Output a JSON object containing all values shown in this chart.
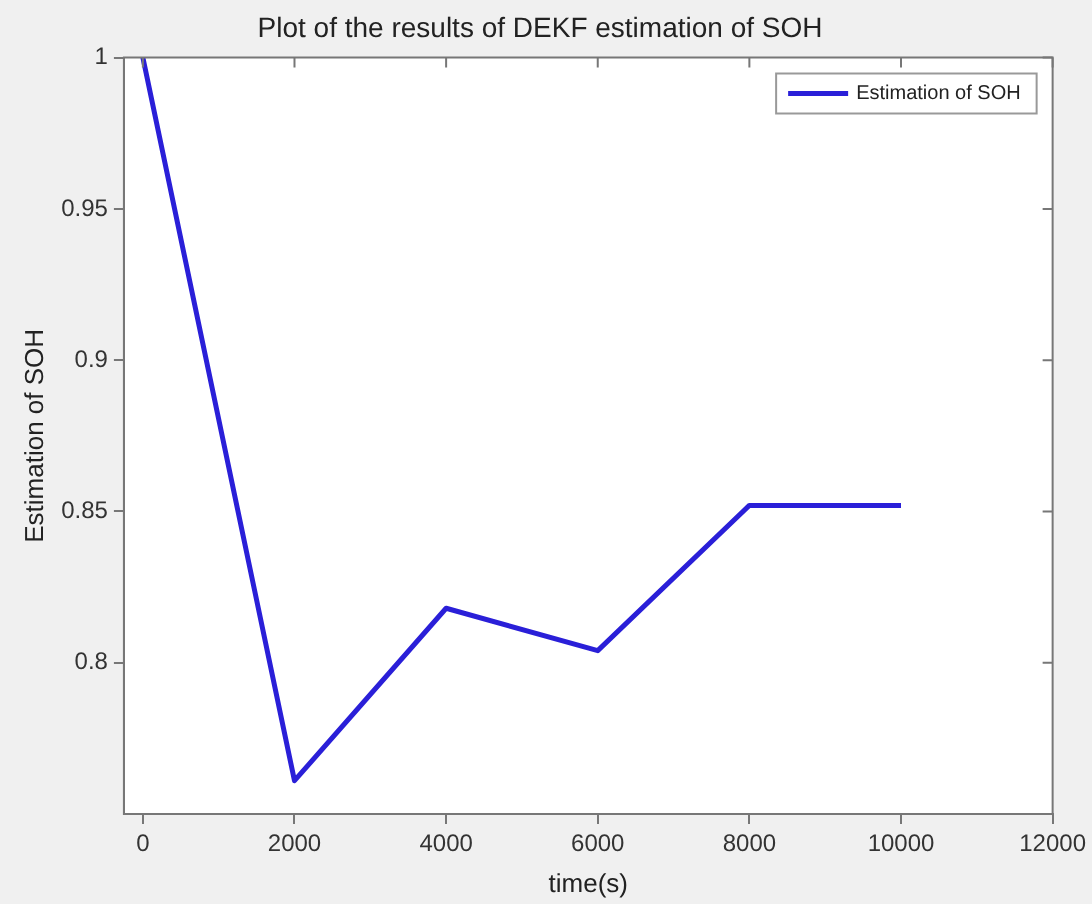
{
  "chart_data": {
    "type": "line",
    "title": "Plot of the results of DEKF estimation of SOH",
    "xlabel": "time(s)",
    "ylabel": "Estimation of SOH",
    "x": [
      0,
      2000,
      4000,
      6000,
      8000,
      10000
    ],
    "series": [
      {
        "name": "Estimation of SOH",
        "color": "#2a1fd8",
        "values": [
          1,
          0.761,
          0.818,
          0.804,
          0.852,
          0.852
        ]
      }
    ],
    "xlim": [
      -250,
      12000
    ],
    "xticks": [
      0,
      2000,
      4000,
      6000,
      8000,
      10000,
      12000
    ],
    "ylim": [
      0.75,
      1
    ],
    "yticks": [
      0.8,
      0.85,
      0.9,
      0.95,
      1
    ],
    "grid": false,
    "legend": "top right",
    "marker": "none",
    "line_style": "solid"
  }
}
